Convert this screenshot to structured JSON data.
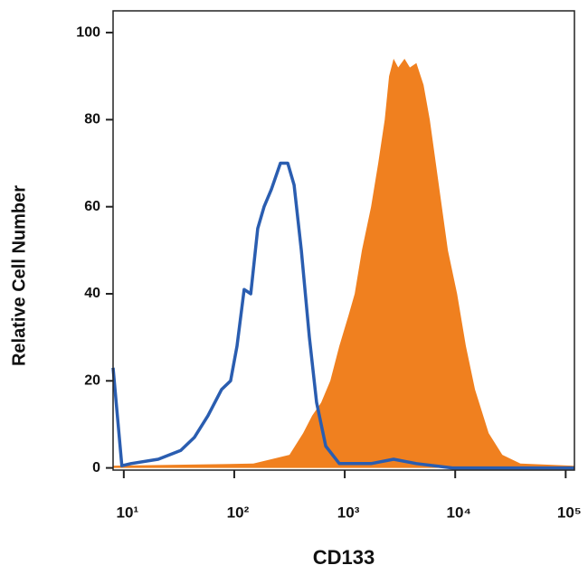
{
  "chart_data": {
    "type": "histogram-overlay",
    "x_label": "CD133",
    "y_label": "Relative Cell Number",
    "x_scale": "log",
    "xlim": [
      8,
      120000
    ],
    "ylim": [
      -0.5,
      105
    ],
    "xticks": [
      {
        "value": 10,
        "label": "10¹"
      },
      {
        "value": 100,
        "label": "10²"
      },
      {
        "value": 1000,
        "label": "10³"
      },
      {
        "value": 10000,
        "label": "10⁴"
      },
      {
        "value": 100000,
        "label": "10⁵"
      }
    ],
    "yticks": [
      0,
      20,
      40,
      60,
      80,
      100
    ],
    "series": [
      {
        "color": "#f0801f",
        "style": "filled",
        "x": [
          8,
          149,
          316,
          420,
          507,
          612,
          740,
          893,
          1080,
          1230,
          1430,
          1730,
          2010,
          2300,
          2520,
          2770,
          3050,
          3480,
          3890,
          4450,
          5170,
          5890,
          7110,
          8590,
          10400,
          12500,
          15100,
          20100,
          26700,
          38900,
          120000
        ],
        "values": [
          0.5,
          1,
          3,
          8,
          12,
          15,
          20,
          28,
          35,
          40,
          50,
          60,
          70,
          80,
          90,
          94,
          92,
          94,
          92,
          93,
          88,
          80,
          65,
          50,
          40,
          28,
          18,
          8,
          3,
          1,
          0.5
        ]
      },
      {
        "color": "#2a5db0",
        "style": "line",
        "x": [
          8,
          9.6,
          11.6,
          20.5,
          32.8,
          43.5,
          57.8,
          76.7,
          92.7,
          106,
          123,
          141,
          163,
          186,
          217,
          262,
          305,
          348,
          405,
          479,
          557,
          673,
          893,
          1730,
          2770,
          4450,
          9440,
          120000
        ],
        "values": [
          23,
          0.5,
          1,
          2,
          4,
          7,
          12,
          18,
          20,
          28,
          41,
          40,
          55,
          60,
          64,
          70,
          70,
          65,
          50,
          30,
          15,
          5,
          1,
          1,
          2,
          1,
          0,
          0
        ]
      }
    ]
  }
}
